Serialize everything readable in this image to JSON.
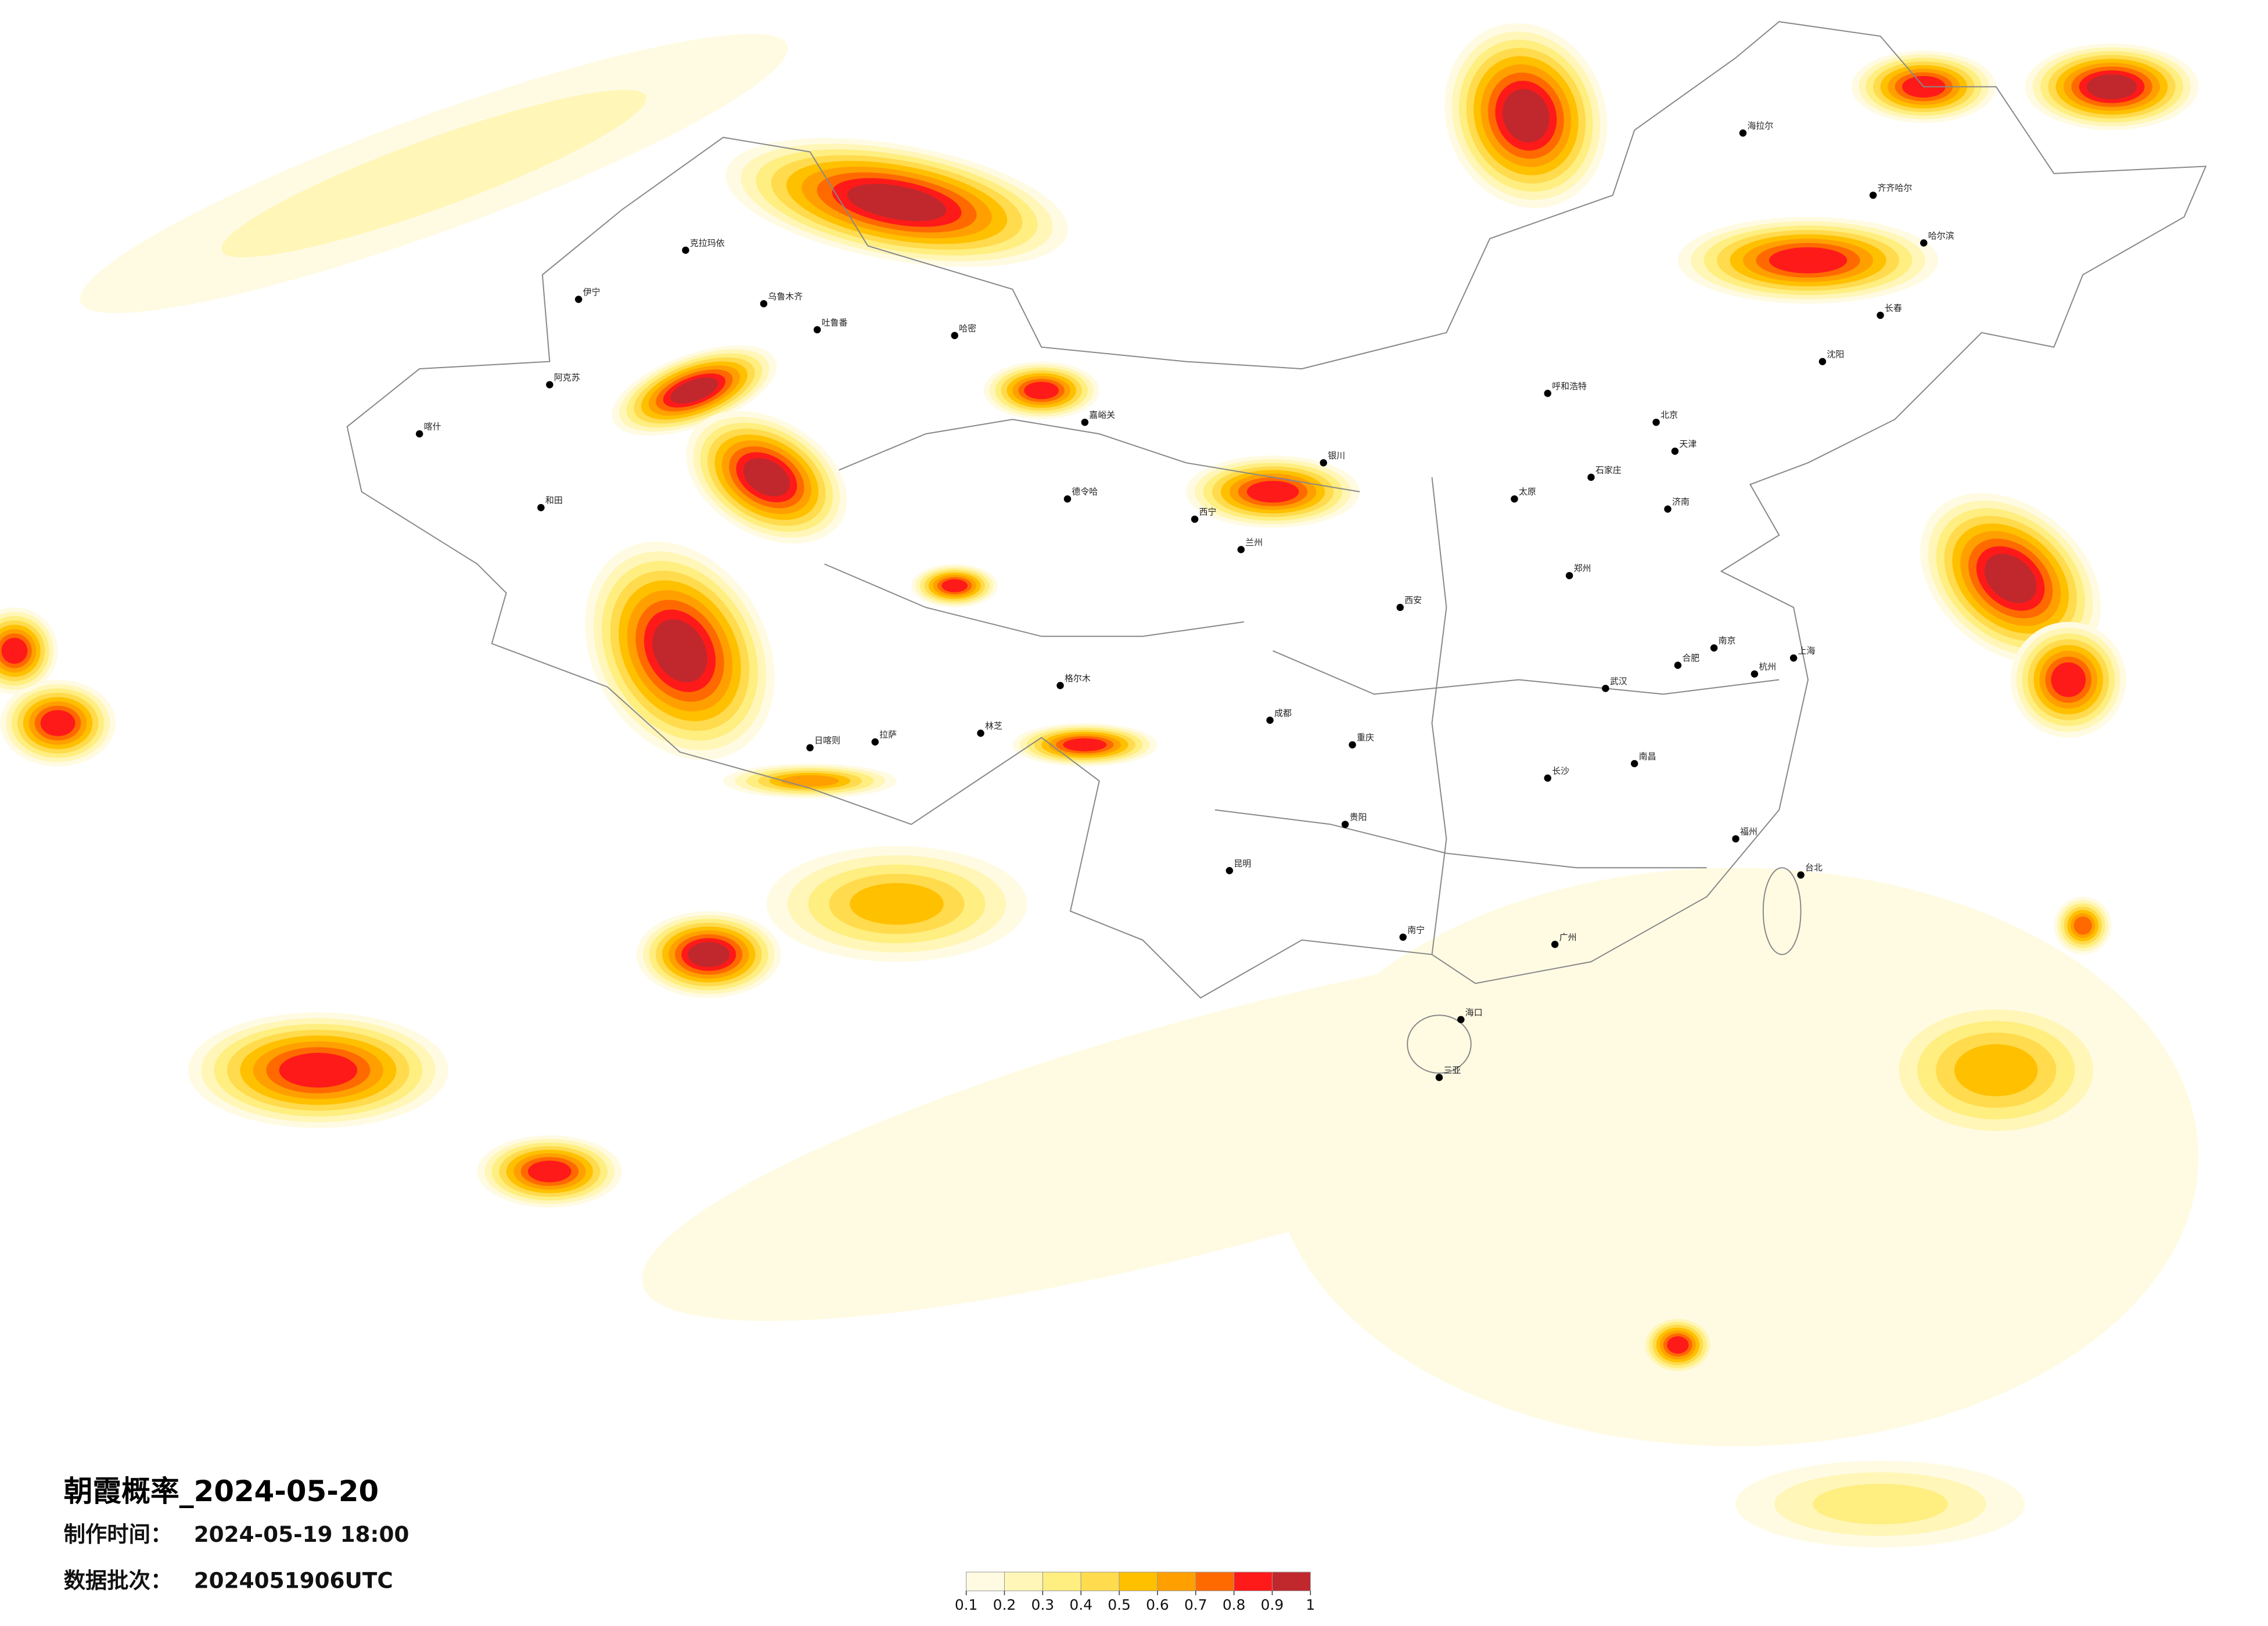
{
  "title": "朝霞概率_2024-05-20",
  "info": [
    {
      "label": "制作时间：",
      "value": "2024-05-19 18:00"
    },
    {
      "label": "数据批次：",
      "value": "2024051906UTC"
    }
  ],
  "colorbar": {
    "ticks": [
      0.1,
      0.2,
      0.3,
      0.4,
      0.5,
      0.6,
      0.7,
      0.8,
      0.9,
      1
    ],
    "colors": [
      "#fffbe3",
      "#fff6b8",
      "#ffee80",
      "#ffdb4d",
      "#ffc000",
      "#ffa000",
      "#ff6a00",
      "#ff1a1a",
      "#c0282d"
    ]
  },
  "cities": [
    "克拉玛依",
    "乌鲁木齐",
    "伊宁",
    "阿克苏",
    "喀什",
    "和田",
    "哈密",
    "吐鲁番",
    "格尔木",
    "拉萨",
    "日喀则",
    "林芝",
    "德令哈",
    "嘉峪关",
    "西宁",
    "兰州",
    "银川",
    "呼和浩特",
    "北京",
    "天津",
    "石家庄",
    "太原",
    "济南",
    "郑州",
    "西安",
    "武汉",
    "成都",
    "重庆",
    "贵阳",
    "昆明",
    "南宁",
    "广州",
    "长沙",
    "南昌",
    "杭州",
    "上海",
    "南京",
    "合肥",
    "福州",
    "台北",
    "海口",
    "三亚",
    "沈阳",
    "长春",
    "哈尔滨",
    "海拉尔",
    "齐齐哈尔"
  ]
}
